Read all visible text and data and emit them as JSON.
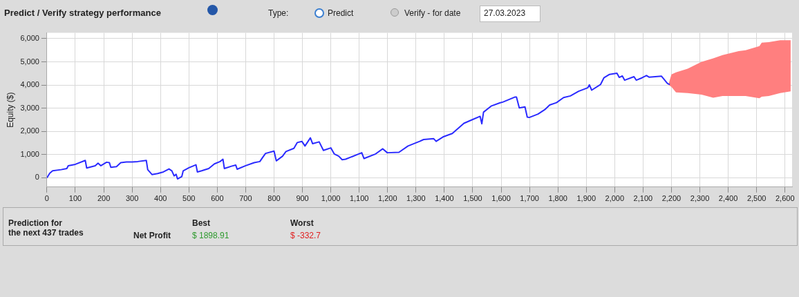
{
  "chart_data": {
    "type": "line",
    "title": "Predict / Verify strategy performance",
    "ylabel": "Equity ($)",
    "xlim": [
      0,
      2625
    ],
    "ylim": [
      -400,
      6250
    ],
    "xticks": [
      0,
      100,
      200,
      300,
      400,
      500,
      600,
      700,
      800,
      900,
      {
        "value": 1000,
        "label": "1,000"
      },
      {
        "value": 1100,
        "label": "1,100"
      },
      {
        "value": 1200,
        "label": "1,200"
      },
      {
        "value": 1300,
        "label": "1,300"
      },
      {
        "value": 1400,
        "label": "1,400"
      },
      {
        "value": 1500,
        "label": "1,500"
      },
      {
        "value": 1600,
        "label": "1,600"
      },
      {
        "value": 1700,
        "label": "1,700"
      },
      {
        "value": 1800,
        "label": "1,800"
      },
      {
        "value": 1900,
        "label": "1,900"
      },
      {
        "value": 2000,
        "label": "2,000"
      },
      {
        "value": 2100,
        "label": "2,100"
      },
      {
        "value": 2200,
        "label": "2,200"
      },
      {
        "value": 2300,
        "label": "2,300"
      },
      {
        "value": 2400,
        "label": "2,400"
      },
      {
        "value": 2500,
        "label": "2,500"
      },
      {
        "value": 2600,
        "label": "2,600"
      }
    ],
    "yticks": [
      0,
      {
        "value": 1000,
        "label": "1,000"
      },
      {
        "value": 2000,
        "label": "2,000"
      },
      {
        "value": 3000,
        "label": "3,000"
      },
      {
        "value": 4000,
        "label": "4,000"
      },
      {
        "value": 5000,
        "label": "5,000"
      },
      {
        "value": 6000,
        "label": "6,000"
      }
    ],
    "grid": true,
    "legend": false,
    "marker": "none",
    "line_style": "solid",
    "series": [
      {
        "color": "#2a2aff",
        "x": [
          0,
          10,
          20,
          50,
          70,
          75,
          100,
          135,
          140,
          170,
          180,
          190,
          210,
          220,
          225,
          245,
          260,
          280,
          300,
          320,
          350,
          355,
          370,
          390,
          410,
          430,
          440,
          448,
          455,
          460,
          475,
          480,
          500,
          525,
          530,
          545,
          570,
          590,
          610,
          620,
          625,
          650,
          665,
          670,
          700,
          730,
          750,
          760,
          770,
          800,
          808,
          830,
          842,
          870,
          882,
          898,
          909,
          928,
          936,
          959,
          974,
          1000,
          1012,
          1028,
          1040,
          1052,
          1109,
          1117,
          1158,
          1183,
          1199,
          1240,
          1272,
          1313,
          1327,
          1362,
          1371,
          1395,
          1428,
          1469,
          1497,
          1526,
          1532,
          1538,
          1566,
          1595,
          1607,
          1648,
          1654,
          1664,
          1684,
          1692,
          1699,
          1730,
          1754,
          1771,
          1795,
          1820,
          1844,
          1873,
          1905,
          1911,
          1919,
          1950,
          1962,
          1982,
          2008,
          2016,
          2027,
          2035,
          2068,
          2076,
          2096,
          2112,
          2121,
          2165,
          2186,
          2194
        ],
        "values": [
          0,
          200,
          300,
          350,
          400,
          520,
          580,
          750,
          420,
          520,
          630,
          520,
          670,
          650,
          450,
          480,
          650,
          680,
          680,
          700,
          750,
          350,
          140,
          180,
          250,
          380,
          300,
          80,
          150,
          -50,
          50,
          300,
          430,
          560,
          250,
          300,
          400,
          600,
          700,
          800,
          400,
          500,
          550,
          370,
          520,
          650,
          700,
          880,
          1050,
          1150,
          730,
          930,
          1130,
          1270,
          1520,
          1570,
          1370,
          1720,
          1470,
          1550,
          1180,
          1290,
          1030,
          930,
          780,
          800,
          1080,
          830,
          1030,
          1250,
          1080,
          1100,
          1370,
          1570,
          1650,
          1690,
          1570,
          1760,
          1910,
          2350,
          2500,
          2650,
          2330,
          2830,
          3100,
          3230,
          3270,
          3480,
          3480,
          3010,
          3060,
          2620,
          2600,
          2750,
          2940,
          3140,
          3240,
          3460,
          3530,
          3730,
          3880,
          4010,
          3780,
          4020,
          4310,
          4460,
          4510,
          4330,
          4390,
          4210,
          4360,
          4210,
          4310,
          4410,
          4340,
          4380,
          4070,
          4020
        ]
      },
      {
        "color": "#ff7f7f",
        "x": [
          2190,
          2200,
          2216,
          2257,
          2306,
          2347,
          2380,
          2437,
          2461,
          2510,
          2518,
          2543,
          2583,
          2620
        ],
        "values": [
          null,
          null,
          null,
          null,
          null,
          null,
          null,
          null,
          null,
          null,
          null,
          null,
          null,
          null
        ],
        "lower": [
          4000,
          3920,
          3680,
          3650,
          3590,
          3450,
          3530,
          3530,
          3530,
          3430,
          3500,
          3530,
          3650,
          3730
        ],
        "upper": [
          4050,
          4460,
          4550,
          4700,
          5000,
          5150,
          5290,
          5460,
          5500,
          5680,
          5830,
          5850,
          5930,
          5930
        ]
      }
    ],
    "annotations": [
      "Type:",
      "Predict",
      "Verify - for date",
      "27.03.2023",
      "Prediction for\nthe next 437 trades",
      "Best",
      "Worst",
      "Net Profit",
      "$ 1898.91",
      "$ -332.7"
    ]
  }
}
